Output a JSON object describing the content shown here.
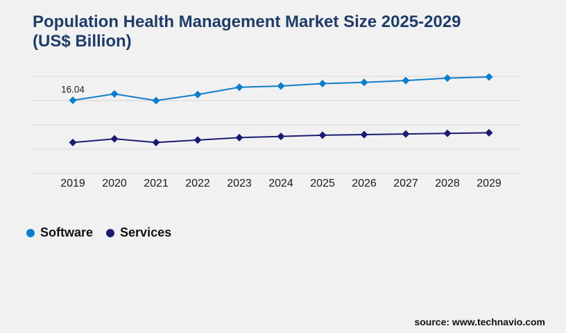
{
  "page": {
    "background": "#f1f1f2",
    "source_text": "source: www.technavio.com"
  },
  "title": {
    "lines": [
      "Population Health Management Market Size 2025-2029",
      "(US$ Billion)"
    ],
    "color": "#1f3c68"
  },
  "legend": {
    "items": [
      {
        "label": "Software",
        "color": "#0d7ec9",
        "marker": "circle-icon"
      },
      {
        "label": "Services",
        "color": "#1b1b70",
        "marker": "circle-icon"
      }
    ]
  },
  "chart_data": {
    "type": "line",
    "title": "Population Health Management Market Size 2025-2029 (US$ Billion)",
    "xlabel": "",
    "ylabel": "US$ Billion",
    "categories": [
      "2019",
      "2020",
      "2021",
      "2022",
      "2023",
      "2024",
      "2025",
      "2026",
      "2027",
      "2028",
      "2029"
    ],
    "series": [
      {
        "name": "Software",
        "color": "#0d7ec9",
        "values": [
          16.04,
          17.1,
          16.0,
          17.0,
          18.2,
          18.4,
          18.8,
          19.0,
          19.3,
          19.7,
          19.9
        ]
      },
      {
        "name": "Services",
        "color": "#1b1b70",
        "values": [
          9.1,
          9.7,
          9.1,
          9.5,
          9.9,
          10.1,
          10.3,
          10.4,
          10.5,
          10.6,
          10.7
        ]
      }
    ],
    "annotations": [
      {
        "series": "Software",
        "category": "2019",
        "text": "16.04"
      }
    ],
    "ylim": [
      4,
      22
    ],
    "gridline_values": [
      20,
      16,
      12,
      8,
      4
    ],
    "grid": "horizontal",
    "gridline_color": "#d5d5d5",
    "axis_label_color": "#1a1a1a",
    "annotation_color": "#222222",
    "marker_shape": "diamond",
    "legend_position": "bottom-left"
  }
}
